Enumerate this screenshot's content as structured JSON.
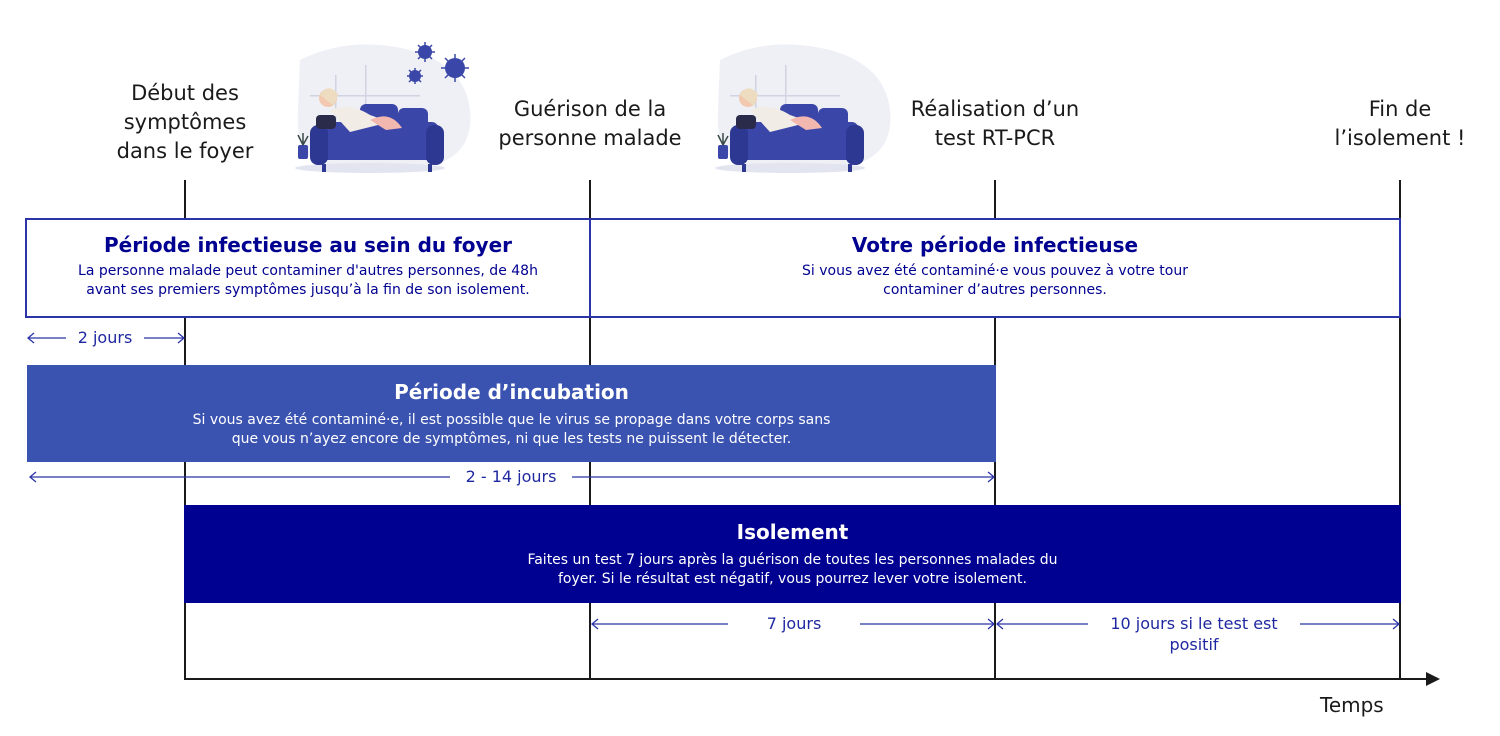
{
  "milestones": {
    "debut": "Début des\nsymptômes\ndans le foyer",
    "guerison": "Guérison de la\npersonne malade",
    "test": "Réalisation d’un\ntest RT-PCR",
    "fin": "Fin de\nl’isolement !"
  },
  "foyer_period": {
    "title": "Période infectieuse au sein du foyer",
    "text": "La personne malade peut contaminer d'autres personnes, de 48h\navant ses premiers symptômes jusqu’à la fin de son isolement."
  },
  "your_period": {
    "title": "Votre période infectieuse",
    "text": "Si vous avez été contaminé·e vous pouvez à votre tour\ncontaminer d’autres personnes."
  },
  "incubation": {
    "title": "Période d’incubation",
    "text": "Si vous avez été contaminé·e, il est possible que le virus se propage dans votre corps sans\nque vous n’ayez encore de symptômes, ni que les tests ne puissent le détecter."
  },
  "isolement": {
    "title": "Isolement",
    "text": "Faites un test 7 jours après la guérison de toutes les personnes malades du\nfoyer. Si le résultat est négatif, vous pourrez lever votre isolement."
  },
  "durations": {
    "two_days": "2 jours",
    "incubation": "2 - 14 jours",
    "seven_days": "7 jours",
    "ten_days": "10 jours si le test est\npositif"
  },
  "axis_label": "Temps",
  "colors": {
    "navy": "#000091",
    "blue": "#3b53b0",
    "arrow": "#2b35a8"
  },
  "illustrations": [
    "sick-person-on-couch-with-virus-icon",
    "sick-person-on-couch-icon"
  ]
}
